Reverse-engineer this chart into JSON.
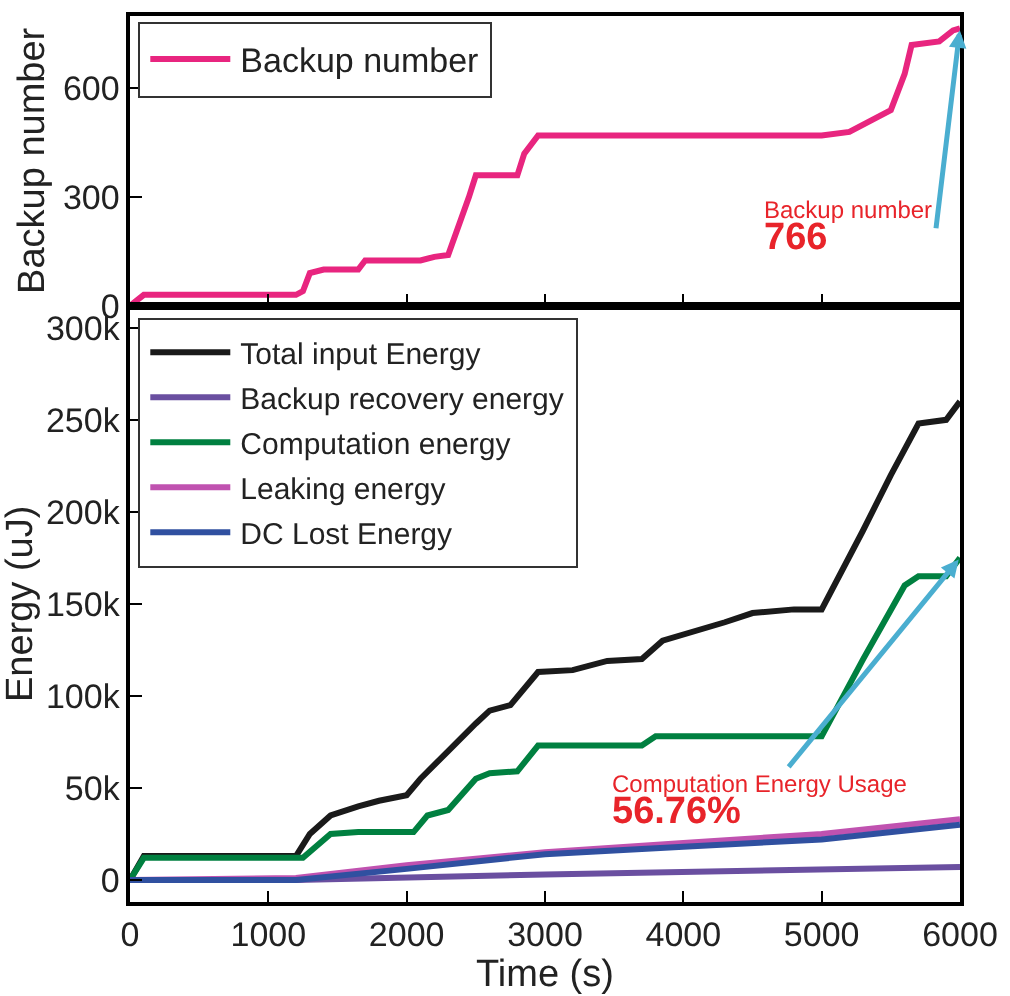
{
  "chart_data": [
    {
      "type": "line",
      "ylabel": "Backup number",
      "xlim": [
        0,
        6000
      ],
      "xticks": [
        {
          "value": 0,
          "label": null
        },
        {
          "value": 1000,
          "label": null
        },
        {
          "value": 2000,
          "label": null
        },
        {
          "value": 3000,
          "label": null
        },
        {
          "value": 4000,
          "label": null
        },
        {
          "value": 5000,
          "label": null
        },
        {
          "value": 6000,
          "label": null
        }
      ],
      "ylim": [
        0,
        800
      ],
      "yticks": [
        0,
        300,
        600
      ],
      "tick_labels": "y",
      "legend": "top left",
      "grid": false,
      "line_style": "solid",
      "marker": "none",
      "annotations": [
        {
          "text": "Backup number\n766",
          "x": 6000,
          "y": 766
        }
      ],
      "series": [
        {
          "name": "Backup number",
          "color": "#e8257f",
          "x": [
            0,
            100,
            1200,
            1250,
            1300,
            1400,
            1650,
            1700,
            2100,
            2200,
            2300,
            2450,
            2500,
            2800,
            2850,
            2950,
            5000,
            5200,
            5400,
            5500,
            5600,
            5650,
            5850,
            5950,
            6000
          ],
          "values": [
            0,
            30,
            30,
            40,
            90,
            100,
            100,
            125,
            125,
            135,
            140,
            300,
            360,
            360,
            420,
            470,
            470,
            480,
            520,
            540,
            640,
            720,
            730,
            760,
            766
          ]
        }
      ]
    },
    {
      "type": "line",
      "xlabel": "Time (s)",
      "ylabel": "Energy (uJ)",
      "xlim": [
        0,
        6000
      ],
      "xticks": [
        0,
        1000,
        2000,
        3000,
        4000,
        5000,
        6000
      ],
      "ylim": [
        -12000,
        312000
      ],
      "yticks": [
        0,
        {
          "value": 50000,
          "label": "50k"
        },
        {
          "value": 100000,
          "label": "100k"
        },
        {
          "value": 150000,
          "label": "150k"
        },
        {
          "value": 200000,
          "label": "200k"
        },
        {
          "value": 250000,
          "label": "250k"
        },
        {
          "value": 300000,
          "label": "300k"
        }
      ],
      "legend": "top left",
      "grid": false,
      "line_style": "solid",
      "marker": "none",
      "annotations": [
        {
          "text": "Computation Energy Usage\n56.76%",
          "x": 6000,
          "y": 175000
        }
      ],
      "series": [
        {
          "name": "Total input Energy",
          "color": "#1a1a1a",
          "x": [
            0,
            100,
            1200,
            1300,
            1450,
            1650,
            1800,
            2000,
            2100,
            2300,
            2500,
            2600,
            2750,
            2950,
            3200,
            3450,
            3700,
            3850,
            4300,
            4500,
            4800,
            5000,
            5300,
            5500,
            5700,
            5900,
            6000
          ],
          "values": [
            0,
            13000,
            13000,
            25000,
            35000,
            40000,
            43000,
            46000,
            55000,
            70000,
            85000,
            92000,
            95000,
            113000,
            114000,
            119000,
            120000,
            130000,
            140000,
            145000,
            147000,
            147000,
            190000,
            220000,
            248000,
            250000,
            260000
          ]
        },
        {
          "name": "Backup recovery energy",
          "color": "#6a4fa0",
          "x": [
            0,
            1200,
            3000,
            6000
          ],
          "values": [
            0,
            0,
            3000,
            7000
          ]
        },
        {
          "name": "Computation energy",
          "color": "#008040",
          "x": [
            0,
            100,
            1250,
            1450,
            1650,
            2050,
            2150,
            2300,
            2500,
            2600,
            2800,
            2950,
            3700,
            3800,
            5000,
            5300,
            5600,
            5700,
            5900,
            6000
          ],
          "values": [
            0,
            12000,
            12000,
            25000,
            26000,
            26000,
            35000,
            38000,
            55000,
            58000,
            59000,
            73000,
            73000,
            78000,
            78000,
            120000,
            160000,
            165000,
            165000,
            175000
          ]
        },
        {
          "name": "Leaking energy",
          "color": "#c052b0",
          "x": [
            0,
            1200,
            2000,
            3000,
            4000,
            5000,
            6000
          ],
          "values": [
            0,
            1000,
            8000,
            15000,
            20000,
            25000,
            33000
          ]
        },
        {
          "name": "DC Lost Energy",
          "color": "#3050a0",
          "x": [
            0,
            1200,
            2000,
            3000,
            4000,
            5000,
            6000
          ],
          "values": [
            0,
            0,
            6000,
            14000,
            18000,
            22000,
            30000
          ]
        }
      ]
    }
  ]
}
